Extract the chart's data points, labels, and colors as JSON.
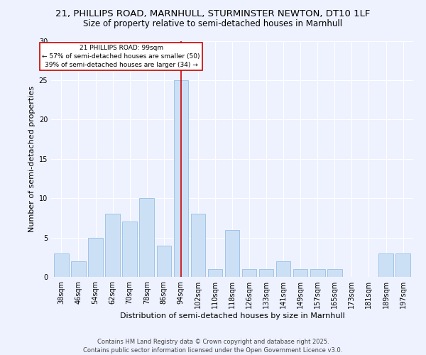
{
  "title1": "21, PHILLIPS ROAD, MARNHULL, STURMINSTER NEWTON, DT10 1LF",
  "title2": "Size of property relative to semi-detached houses in Marnhull",
  "xlabel": "Distribution of semi-detached houses by size in Marnhull",
  "ylabel": "Number of semi-detached properties",
  "categories": [
    "38sqm",
    "46sqm",
    "54sqm",
    "62sqm",
    "70sqm",
    "78sqm",
    "86sqm",
    "94sqm",
    "102sqm",
    "110sqm",
    "118sqm",
    "126sqm",
    "133sqm",
    "141sqm",
    "149sqm",
    "157sqm",
    "165sqm",
    "173sqm",
    "181sqm",
    "189sqm",
    "197sqm"
  ],
  "values": [
    3,
    2,
    5,
    8,
    7,
    10,
    4,
    25,
    8,
    1,
    6,
    1,
    1,
    2,
    1,
    1,
    1,
    0,
    0,
    3,
    3
  ],
  "bar_color": "#cce0f5",
  "bar_edge_color": "#a0c4e8",
  "highlight_index": 7,
  "highlight_line_color": "#cc0000",
  "annotation_text": "21 PHILLIPS ROAD: 99sqm\n← 57% of semi-detached houses are smaller (50)\n39% of semi-detached houses are larger (34) →",
  "annotation_box_color": "#ffffff",
  "annotation_box_edge_color": "#cc0000",
  "ylim": [
    0,
    30
  ],
  "yticks": [
    0,
    5,
    10,
    15,
    20,
    25,
    30
  ],
  "footer": "Contains HM Land Registry data © Crown copyright and database right 2025.\nContains public sector information licensed under the Open Government Licence v3.0.",
  "background_color": "#eef2ff",
  "grid_color": "#ffffff",
  "title1_fontsize": 9.5,
  "title2_fontsize": 8.5,
  "axis_fontsize": 8,
  "tick_fontsize": 7,
  "footer_fontsize": 6
}
